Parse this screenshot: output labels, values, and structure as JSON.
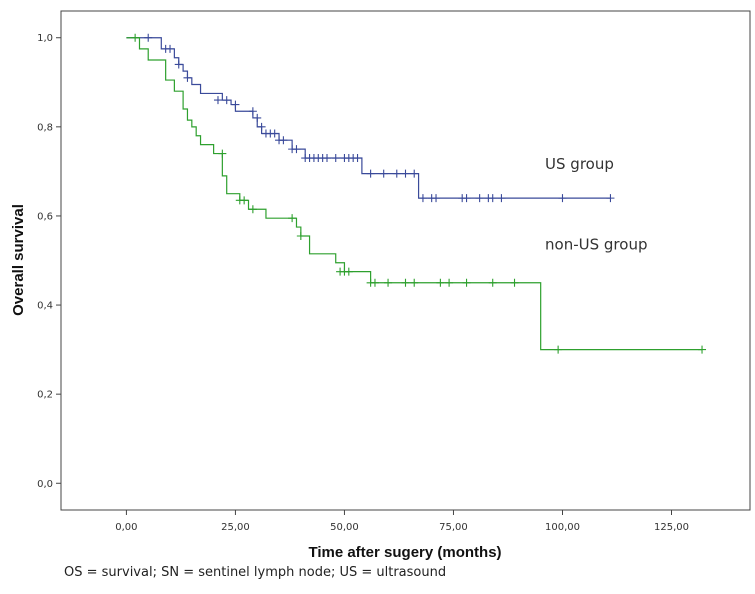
{
  "chart_data": {
    "type": "line",
    "title": "",
    "xlabel": "Time after sugery (months)",
    "ylabel": "Overall survival",
    "xlim": [
      -15,
      143
    ],
    "ylim": [
      -0.06,
      1.06
    ],
    "x_ticks": [
      0,
      25,
      50,
      75,
      100,
      125
    ],
    "x_tick_labels": [
      "0,00",
      "25,00",
      "50,00",
      "75,00",
      "100,00",
      "125,00"
    ],
    "y_ticks": [
      0,
      0.2,
      0.4,
      0.6,
      0.8,
      1.0
    ],
    "y_tick_labels": [
      "0,0",
      "0,2",
      "0,4",
      "0,6",
      "0,8",
      "1,0"
    ],
    "grid": false,
    "step": true,
    "series": [
      {
        "name": "US group",
        "color": "#3a4a9a",
        "x": [
          0,
          8,
          11,
          12,
          13,
          14,
          15,
          17,
          22,
          24,
          25,
          29,
          30,
          31,
          35,
          38,
          41,
          54,
          67,
          111
        ],
        "y": [
          1.0,
          0.975,
          0.955,
          0.94,
          0.925,
          0.91,
          0.895,
          0.875,
          0.86,
          0.85,
          0.835,
          0.82,
          0.8,
          0.785,
          0.77,
          0.75,
          0.73,
          0.695,
          0.64,
          0.64
        ],
        "censored_x": [
          5,
          9,
          10,
          12,
          14,
          21,
          23,
          25,
          29,
          30,
          31,
          32,
          33,
          34,
          35,
          36,
          38,
          39,
          41,
          42,
          43,
          44,
          45,
          46,
          48,
          50,
          51,
          52,
          53,
          56,
          59,
          62,
          64,
          66,
          68,
          70,
          71,
          77,
          78,
          81,
          83,
          84,
          86,
          100,
          111
        ],
        "censored_y": [
          1.0,
          0.975,
          0.975,
          0.94,
          0.91,
          0.86,
          0.86,
          0.85,
          0.835,
          0.82,
          0.8,
          0.785,
          0.785,
          0.785,
          0.77,
          0.77,
          0.75,
          0.75,
          0.73,
          0.73,
          0.73,
          0.73,
          0.73,
          0.73,
          0.73,
          0.73,
          0.73,
          0.73,
          0.73,
          0.695,
          0.695,
          0.695,
          0.695,
          0.695,
          0.64,
          0.64,
          0.64,
          0.64,
          0.64,
          0.64,
          0.64,
          0.64,
          0.64,
          0.64,
          0.64
        ]
      },
      {
        "name": "non-US group",
        "color": "#2ea02e",
        "x": [
          0,
          3,
          5,
          9,
          11,
          13,
          14,
          15,
          16,
          17,
          19,
          20,
          22,
          23,
          24,
          26,
          28,
          32,
          39,
          40,
          42,
          48,
          50,
          56,
          95,
          132
        ],
        "y": [
          1.0,
          0.975,
          0.95,
          0.905,
          0.88,
          0.84,
          0.815,
          0.8,
          0.78,
          0.76,
          0.76,
          0.74,
          0.69,
          0.65,
          0.65,
          0.635,
          0.615,
          0.595,
          0.575,
          0.555,
          0.515,
          0.495,
          0.475,
          0.45,
          0.3,
          0.3
        ],
        "censored_x": [
          2,
          22,
          26,
          27,
          29,
          38,
          40,
          49,
          50,
          51,
          56,
          57,
          60,
          64,
          66,
          72,
          74,
          78,
          84,
          89,
          99,
          132
        ],
        "censored_y": [
          1.0,
          0.74,
          0.635,
          0.635,
          0.615,
          0.595,
          0.555,
          0.475,
          0.475,
          0.475,
          0.45,
          0.45,
          0.45,
          0.45,
          0.45,
          0.45,
          0.45,
          0.45,
          0.45,
          0.45,
          0.3,
          0.3
        ]
      }
    ],
    "annotations": [
      {
        "text": "US group",
        "series": 0,
        "at_x": 96,
        "at_y": 0.705
      },
      {
        "text": "non-US group",
        "series": 1,
        "at_x": 96,
        "at_y": 0.525
      }
    ]
  },
  "caption": "OS = survival; SN = sentinel lymph node; US = ultrasound"
}
